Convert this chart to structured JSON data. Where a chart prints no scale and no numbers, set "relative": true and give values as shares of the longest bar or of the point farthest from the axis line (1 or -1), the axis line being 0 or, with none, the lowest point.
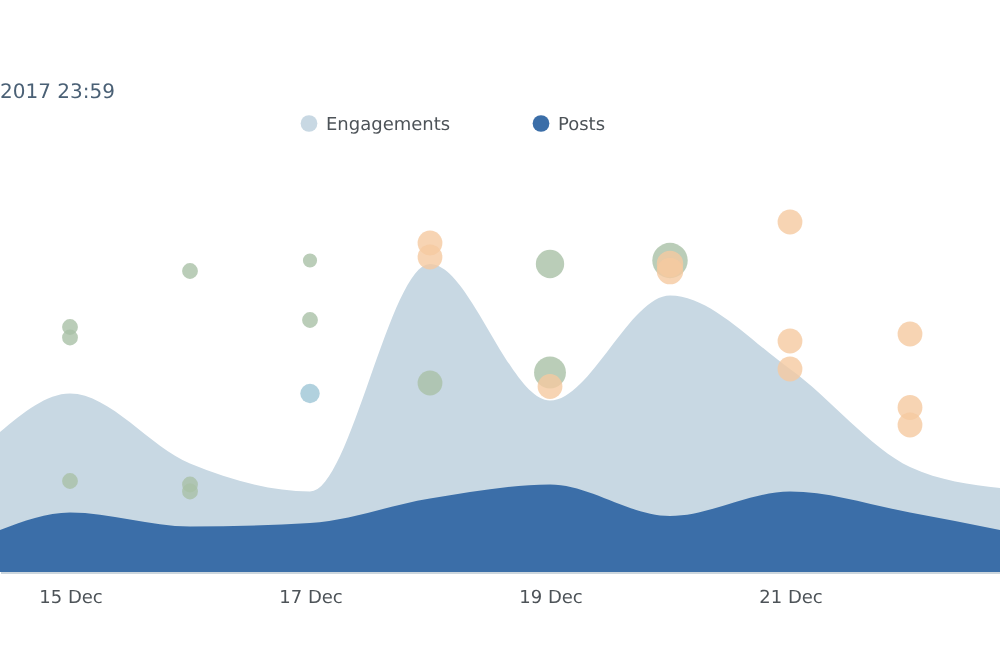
{
  "chart_data": {
    "type": "area",
    "title": "2017 23:59",
    "relative": true,
    "legend": "top",
    "grid": false,
    "xlim": [
      "2017-12-14T10:00",
      "2017-12-22T18:00"
    ],
    "xticks": [
      {
        "value": "2017-12-15",
        "label": "15 Dec"
      },
      {
        "value": "2017-12-17",
        "label": "17 Dec"
      },
      {
        "value": "2017-12-19",
        "label": "19 Dec"
      },
      {
        "value": "2017-12-21",
        "label": "21 Dec"
      }
    ],
    "series": [
      {
        "name": "Engagements",
        "color": "#c8d8e3",
        "x": [
          "2017-12-14T10:00",
          "2017-12-15",
          "2017-12-16",
          "2017-12-17",
          "2017-12-18",
          "2017-12-19",
          "2017-12-20",
          "2017-12-21",
          "2017-12-22",
          "2017-12-22T18:00"
        ],
        "values": [
          0.4,
          0.51,
          0.31,
          0.23,
          0.88,
          0.49,
          0.79,
          0.58,
          0.3,
          0.24
        ]
      },
      {
        "name": "Posts",
        "color": "#3b6ea8",
        "x": [
          "2017-12-14T10:00",
          "2017-12-15",
          "2017-12-16",
          "2017-12-17",
          "2017-12-18",
          "2017-12-19",
          "2017-12-20",
          "2017-12-21",
          "2017-12-22",
          "2017-12-22T18:00"
        ],
        "values": [
          0.12,
          0.17,
          0.13,
          0.14,
          0.21,
          0.25,
          0.16,
          0.23,
          0.17,
          0.12
        ]
      },
      {
        "type": "bubble",
        "color": "#a9c1a6",
        "x": [
          "2017-12-15",
          "2017-12-15",
          "2017-12-15",
          "2017-12-16",
          "2017-12-16",
          "2017-12-16",
          "2017-12-17",
          "2017-12-17",
          "2017-12-18",
          "2017-12-19",
          "2017-12-19",
          "2017-12-20"
        ],
        "values": [
          0.7,
          0.67,
          0.26,
          0.86,
          0.25,
          0.23,
          0.89,
          0.72,
          0.54,
          0.88,
          0.57,
          0.89
        ],
        "sizes": [
          0.2,
          0.2,
          0.2,
          0.2,
          0.2,
          0.2,
          0.16,
          0.2,
          0.49,
          0.64,
          0.81,
          1
        ]
      },
      {
        "type": "bubble",
        "color": "#9dc6d6",
        "x": [
          "2017-12-17"
        ],
        "values": [
          0.51
        ],
        "sizes": [
          0.3
        ]
      },
      {
        "type": "bubble",
        "color": "#f5c9a0",
        "x": [
          "2017-12-18",
          "2017-12-18",
          "2017-12-19",
          "2017-12-20",
          "2017-12-20",
          "2017-12-21",
          "2017-12-21",
          "2017-12-21",
          "2017-12-22",
          "2017-12-22",
          "2017-12-22"
        ],
        "values": [
          0.94,
          0.9,
          0.53,
          0.88,
          0.86,
          1,
          0.66,
          0.58,
          0.68,
          0.47,
          0.42
        ],
        "sizes": [
          0.49,
          0.49,
          0.49,
          0.56,
          0.56,
          0.49,
          0.49,
          0.49,
          0.49,
          0.49,
          0.49
        ]
      }
    ]
  }
}
